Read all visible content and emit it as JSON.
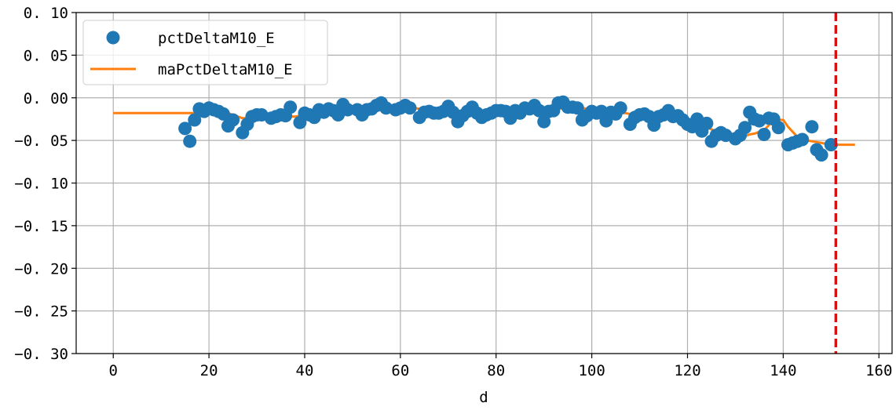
{
  "chart_data": {
    "type": "scatter",
    "title": "",
    "xlabel": "d",
    "ylabel": "",
    "xlim": [
      -7.75,
      162.75
    ],
    "ylim": [
      -0.3,
      0.1
    ],
    "xticks": [
      0,
      20,
      40,
      60,
      80,
      100,
      120,
      140,
      160
    ],
    "xtick_labels": [
      "0",
      "20",
      "40",
      "60",
      "80",
      "100",
      "120",
      "140",
      "160"
    ],
    "yticks": [
      0.1,
      0.05,
      0.0,
      -0.05,
      -0.1,
      -0.15,
      -0.2,
      -0.25,
      -0.3
    ],
    "ytick_labels": [
      "0. 10",
      "0. 05",
      "0. 00",
      "−0. 05",
      "−0. 10",
      "−0. 15",
      "−0. 20",
      "−0. 25",
      "−0. 30"
    ],
    "grid": true,
    "legend_position": "top-left",
    "series": [
      {
        "name": "pctDeltaM10_E",
        "kind": "scatter",
        "color": "#1f77b4",
        "points": [
          [
            15,
            -0.036
          ],
          [
            16,
            -0.051
          ],
          [
            17,
            -0.026
          ],
          [
            18,
            -0.013
          ],
          [
            19,
            -0.016
          ],
          [
            20,
            -0.012
          ],
          [
            21,
            -0.014
          ],
          [
            22,
            -0.016
          ],
          [
            23,
            -0.019
          ],
          [
            24,
            -0.033
          ],
          [
            25,
            -0.026
          ],
          [
            27,
            -0.041
          ],
          [
            28,
            -0.031
          ],
          [
            29,
            -0.022
          ],
          [
            30,
            -0.02
          ],
          [
            31,
            -0.02
          ],
          [
            33,
            -0.024
          ],
          [
            34,
            -0.022
          ],
          [
            35,
            -0.02
          ],
          [
            36,
            -0.021
          ],
          [
            37,
            -0.011
          ],
          [
            39,
            -0.029
          ],
          [
            40,
            -0.018
          ],
          [
            41,
            -0.02
          ],
          [
            42,
            -0.023
          ],
          [
            43,
            -0.014
          ],
          [
            44,
            -0.017
          ],
          [
            45,
            -0.013
          ],
          [
            46,
            -0.015
          ],
          [
            47,
            -0.02
          ],
          [
            48,
            -0.008
          ],
          [
            49,
            -0.014
          ],
          [
            51,
            -0.014
          ],
          [
            52,
            -0.02
          ],
          [
            53,
            -0.014
          ],
          [
            54,
            -0.013
          ],
          [
            55,
            -0.009
          ],
          [
            56,
            -0.006
          ],
          [
            57,
            -0.012
          ],
          [
            59,
            -0.014
          ],
          [
            60,
            -0.012
          ],
          [
            61,
            -0.009
          ],
          [
            62,
            -0.012
          ],
          [
            64,
            -0.023
          ],
          [
            65,
            -0.017
          ],
          [
            66,
            -0.016
          ],
          [
            67,
            -0.018
          ],
          [
            68,
            -0.018
          ],
          [
            69,
            -0.016
          ],
          [
            70,
            -0.01
          ],
          [
            71,
            -0.017
          ],
          [
            72,
            -0.028
          ],
          [
            73,
            -0.021
          ],
          [
            74,
            -0.016
          ],
          [
            75,
            -0.011
          ],
          [
            76,
            -0.018
          ],
          [
            77,
            -0.023
          ],
          [
            78,
            -0.02
          ],
          [
            79,
            -0.018
          ],
          [
            80,
            -0.015
          ],
          [
            81,
            -0.015
          ],
          [
            82,
            -0.016
          ],
          [
            83,
            -0.024
          ],
          [
            84,
            -0.015
          ],
          [
            85,
            -0.018
          ],
          [
            86,
            -0.012
          ],
          [
            87,
            -0.013
          ],
          [
            88,
            -0.009
          ],
          [
            89,
            -0.015
          ],
          [
            90,
            -0.028
          ],
          [
            91,
            -0.016
          ],
          [
            92,
            -0.015
          ],
          [
            93,
            -0.006
          ],
          [
            94,
            -0.005
          ],
          [
            95,
            -0.011
          ],
          [
            96,
            -0.011
          ],
          [
            97,
            -0.012
          ],
          [
            98,
            -0.026
          ],
          [
            99,
            -0.021
          ],
          [
            100,
            -0.016
          ],
          [
            101,
            -0.018
          ],
          [
            102,
            -0.016
          ],
          [
            103,
            -0.027
          ],
          [
            104,
            -0.017
          ],
          [
            105,
            -0.019
          ],
          [
            106,
            -0.012
          ],
          [
            108,
            -0.031
          ],
          [
            109,
            -0.023
          ],
          [
            110,
            -0.02
          ],
          [
            111,
            -0.019
          ],
          [
            112,
            -0.022
          ],
          [
            113,
            -0.032
          ],
          [
            114,
            -0.022
          ],
          [
            115,
            -0.02
          ],
          [
            116,
            -0.015
          ],
          [
            117,
            -0.022
          ],
          [
            118,
            -0.021
          ],
          [
            119,
            -0.026
          ],
          [
            120,
            -0.031
          ],
          [
            121,
            -0.034
          ],
          [
            122,
            -0.025
          ],
          [
            123,
            -0.039
          ],
          [
            124,
            -0.03
          ],
          [
            125,
            -0.051
          ],
          [
            126,
            -0.044
          ],
          [
            127,
            -0.041
          ],
          [
            128,
            -0.044
          ],
          [
            130,
            -0.048
          ],
          [
            131,
            -0.044
          ],
          [
            132,
            -0.035
          ],
          [
            133,
            -0.017
          ],
          [
            134,
            -0.025
          ],
          [
            135,
            -0.027
          ],
          [
            136,
            -0.043
          ],
          [
            137,
            -0.024
          ],
          [
            138,
            -0.025
          ],
          [
            139,
            -0.035
          ],
          [
            141,
            -0.055
          ],
          [
            142,
            -0.053
          ],
          [
            143,
            -0.051
          ],
          [
            144,
            -0.049
          ],
          [
            146,
            -0.034
          ],
          [
            147,
            -0.061
          ],
          [
            148,
            -0.067
          ],
          [
            150,
            -0.055
          ]
        ]
      },
      {
        "name": "maPctDeltaM10_E",
        "kind": "line",
        "color": "#ff7f0e",
        "points": [
          [
            0,
            -0.018
          ],
          [
            19,
            -0.018
          ],
          [
            20,
            -0.016
          ],
          [
            21,
            -0.016
          ],
          [
            22,
            -0.017
          ],
          [
            23,
            -0.017
          ],
          [
            24,
            -0.018
          ],
          [
            25,
            -0.02
          ],
          [
            26,
            -0.022
          ],
          [
            27,
            -0.024
          ],
          [
            28,
            -0.024
          ],
          [
            29,
            -0.024
          ],
          [
            30,
            -0.024
          ],
          [
            31,
            -0.024
          ],
          [
            32,
            -0.024
          ],
          [
            33,
            -0.023
          ],
          [
            34,
            -0.022
          ],
          [
            35,
            -0.022
          ],
          [
            36,
            -0.022
          ],
          [
            37,
            -0.022
          ],
          [
            38,
            -0.022
          ],
          [
            39,
            -0.021
          ],
          [
            40,
            -0.021
          ],
          [
            41,
            -0.021
          ],
          [
            42,
            -0.021
          ],
          [
            43,
            -0.019
          ],
          [
            44,
            -0.019
          ],
          [
            45,
            -0.019
          ],
          [
            46,
            -0.018
          ],
          [
            47,
            -0.017
          ],
          [
            48,
            -0.016
          ],
          [
            49,
            -0.017
          ],
          [
            50,
            -0.017
          ],
          [
            51,
            -0.017
          ],
          [
            52,
            -0.017
          ],
          [
            53,
            -0.016
          ],
          [
            54,
            -0.015
          ],
          [
            55,
            -0.015
          ],
          [
            56,
            -0.014
          ],
          [
            57,
            -0.014
          ],
          [
            58,
            -0.014
          ],
          [
            59,
            -0.014
          ],
          [
            60,
            -0.013
          ],
          [
            61,
            -0.012
          ],
          [
            62,
            -0.012
          ],
          [
            63,
            -0.012
          ],
          [
            64,
            -0.013
          ],
          [
            65,
            -0.014
          ],
          [
            66,
            -0.015
          ],
          [
            67,
            -0.015
          ],
          [
            68,
            -0.016
          ],
          [
            69,
            -0.016
          ],
          [
            70,
            -0.016
          ],
          [
            71,
            -0.016
          ],
          [
            72,
            -0.017
          ],
          [
            73,
            -0.017
          ],
          [
            74,
            -0.018
          ],
          [
            75,
            -0.018
          ],
          [
            76,
            -0.018
          ],
          [
            77,
            -0.018
          ],
          [
            78,
            -0.019
          ],
          [
            79,
            -0.019
          ],
          [
            80,
            -0.018
          ],
          [
            81,
            -0.018
          ],
          [
            82,
            -0.017
          ],
          [
            83,
            -0.018
          ],
          [
            84,
            -0.018
          ],
          [
            85,
            -0.017
          ],
          [
            86,
            -0.017
          ],
          [
            87,
            -0.016
          ],
          [
            88,
            -0.015
          ],
          [
            89,
            -0.015
          ],
          [
            90,
            -0.016
          ],
          [
            91,
            -0.015
          ],
          [
            92,
            -0.014
          ],
          [
            93,
            -0.013
          ],
          [
            94,
            -0.012
          ],
          [
            95,
            -0.011
          ],
          [
            96,
            -0.011
          ],
          [
            97,
            -0.011
          ],
          [
            98,
            -0.012
          ],
          [
            99,
            -0.013
          ],
          [
            100,
            -0.014
          ],
          [
            101,
            -0.015
          ],
          [
            102,
            -0.016
          ],
          [
            103,
            -0.017
          ],
          [
            104,
            -0.017
          ],
          [
            105,
            -0.018
          ],
          [
            106,
            -0.018
          ],
          [
            107,
            -0.018
          ],
          [
            108,
            -0.019
          ],
          [
            109,
            -0.019
          ],
          [
            110,
            -0.02
          ],
          [
            111,
            -0.02
          ],
          [
            112,
            -0.02
          ],
          [
            113,
            -0.021
          ],
          [
            114,
            -0.021
          ],
          [
            115,
            -0.021
          ],
          [
            116,
            -0.021
          ],
          [
            117,
            -0.022
          ],
          [
            118,
            -0.023
          ],
          [
            119,
            -0.025
          ],
          [
            120,
            -0.027
          ],
          [
            121,
            -0.028
          ],
          [
            122,
            -0.03
          ],
          [
            123,
            -0.032
          ],
          [
            124,
            -0.034
          ],
          [
            125,
            -0.037
          ],
          [
            126,
            -0.04
          ],
          [
            127,
            -0.042
          ],
          [
            128,
            -0.043
          ],
          [
            129,
            -0.043
          ],
          [
            130,
            -0.044
          ],
          [
            131,
            -0.045
          ],
          [
            132,
            -0.045
          ],
          [
            133,
            -0.043
          ],
          [
            134,
            -0.042
          ],
          [
            135,
            -0.04
          ],
          [
            136,
            -0.038
          ],
          [
            137,
            -0.032
          ],
          [
            138,
            -0.026
          ],
          [
            139,
            -0.026
          ],
          [
            140,
            -0.026
          ],
          [
            141,
            -0.034
          ],
          [
            142,
            -0.04
          ],
          [
            143,
            -0.046
          ],
          [
            144,
            -0.049
          ],
          [
            145,
            -0.05
          ],
          [
            146,
            -0.051
          ],
          [
            147,
            -0.052
          ],
          [
            148,
            -0.053
          ],
          [
            149,
            -0.054
          ],
          [
            150,
            -0.055
          ],
          [
            151,
            -0.055
          ],
          [
            152,
            -0.055
          ],
          [
            153,
            -0.055
          ],
          [
            154,
            -0.055
          ],
          [
            155,
            -0.055
          ]
        ]
      }
    ],
    "vertical_line": {
      "x": 151,
      "color": "#ff0000",
      "style": "dashed"
    }
  }
}
